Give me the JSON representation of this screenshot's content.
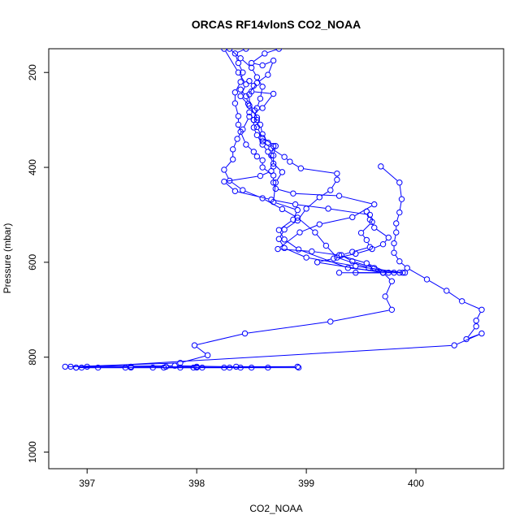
{
  "chart_data": {
    "type": "line",
    "title": "ORCAS RF14vlonS CO2_NOAA",
    "xlabel": "CO2_NOAA",
    "ylabel": "Pressure (mbar)",
    "xlim": [
      396.65,
      400.8
    ],
    "ylim": [
      1035,
      150
    ],
    "y_reversed": true,
    "x_ticks": [
      397,
      398,
      399,
      400
    ],
    "y_ticks": [
      200,
      400,
      600,
      800,
      1000
    ],
    "grid": false,
    "marker": "open-circle",
    "color": "#0000ff",
    "series": [
      {
        "values": [
          [
            398.93,
            822
          ],
          [
            398.5,
            822
          ],
          [
            398.3,
            822
          ],
          [
            397.97,
            822
          ],
          [
            397.4,
            822
          ],
          [
            396.95,
            822
          ],
          [
            396.9,
            822
          ],
          [
            397.1,
            822
          ],
          [
            397.35,
            822
          ],
          [
            397.6,
            822
          ],
          [
            397.85,
            822
          ],
          [
            398.05,
            822
          ],
          [
            398.25,
            822
          ],
          [
            398.4,
            822
          ],
          [
            398.65,
            822
          ],
          [
            397.8,
            818
          ],
          [
            396.8,
            820
          ]
        ]
      },
      {
        "values": [
          [
            396.85,
            820
          ],
          [
            397.85,
            812
          ],
          [
            398.1,
            796
          ],
          [
            397.98,
            775
          ],
          [
            398.44,
            750
          ],
          [
            399.22,
            725
          ],
          [
            399.78,
            700
          ],
          [
            399.72,
            672
          ],
          [
            399.78,
            640
          ],
          [
            399.7,
            622
          ],
          [
            399.3,
            622
          ]
        ]
      },
      {
        "values": [
          [
            396.9,
            822
          ],
          [
            400.35,
            775
          ],
          [
            400.6,
            750
          ],
          [
            400.46,
            762
          ],
          [
            400.55,
            735
          ],
          [
            400.55,
            723
          ],
          [
            400.6,
            700
          ],
          [
            400.42,
            682
          ],
          [
            400.28,
            660
          ],
          [
            400.1,
            636
          ],
          [
            399.92,
            612
          ],
          [
            399.85,
            598
          ],
          [
            399.8,
            580
          ],
          [
            399.8,
            560
          ],
          [
            399.82,
            537
          ],
          [
            399.82,
            518
          ],
          [
            399.85,
            495
          ],
          [
            399.87,
            467
          ],
          [
            399.85,
            432
          ],
          [
            399.68,
            398
          ]
        ]
      },
      {
        "values": [
          [
            397.0,
            820
          ],
          [
            397.4,
            820
          ],
          [
            397.72,
            820
          ],
          [
            398.0,
            820
          ],
          [
            398.36,
            820
          ],
          [
            398.92,
            820
          ],
          [
            398.0,
            822
          ],
          [
            397.7,
            822
          ]
        ]
      },
      {
        "values": [
          [
            399.9,
            622
          ],
          [
            399.45,
            622
          ],
          [
            399.7,
            622
          ],
          [
            399.1,
            600
          ],
          [
            399.25,
            592
          ],
          [
            399.45,
            582
          ],
          [
            399.6,
            572
          ],
          [
            399.7,
            562
          ],
          [
            399.75,
            548
          ],
          [
            399.62,
            527
          ],
          [
            399.58,
            510
          ],
          [
            399.55,
            493
          ]
        ]
      },
      {
        "values": [
          [
            399.88,
            622
          ],
          [
            399.57,
            612
          ],
          [
            399.28,
            590
          ],
          [
            399.18,
            565
          ],
          [
            399.08,
            537
          ],
          [
            398.92,
            506
          ],
          [
            398.78,
            488
          ],
          [
            398.6,
            465
          ],
          [
            398.42,
            448
          ],
          [
            398.3,
            428
          ],
          [
            398.25,
            405
          ],
          [
            398.33,
            383
          ],
          [
            398.33,
            362
          ],
          [
            398.37,
            340
          ],
          [
            398.42,
            320
          ],
          [
            398.48,
            293
          ]
        ]
      },
      {
        "values": [
          [
            399.85,
            622
          ],
          [
            399.45,
            608
          ],
          [
            399.0,
            590
          ],
          [
            398.8,
            570
          ],
          [
            398.75,
            551
          ],
          [
            398.8,
            531
          ],
          [
            398.92,
            512
          ],
          [
            399.0,
            487
          ],
          [
            399.12,
            463
          ],
          [
            399.22,
            448
          ],
          [
            399.28,
            426
          ],
          [
            399.28,
            413
          ],
          [
            398.95,
            402
          ],
          [
            398.85,
            388
          ],
          [
            398.8,
            378
          ],
          [
            398.68,
            360
          ],
          [
            398.6,
            345
          ]
        ]
      },
      {
        "values": [
          [
            399.8,
            622
          ],
          [
            399.38,
            612
          ],
          [
            398.93,
            573
          ],
          [
            398.8,
            552
          ],
          [
            398.75,
            532
          ],
          [
            398.88,
            510
          ],
          [
            398.92,
            490
          ],
          [
            398.7,
            473
          ],
          [
            398.72,
            432
          ],
          [
            398.78,
            410
          ],
          [
            398.7,
            392
          ],
          [
            398.65,
            367
          ],
          [
            398.6,
            352
          ],
          [
            398.55,
            332
          ],
          [
            398.52,
            316
          ],
          [
            398.52,
            300
          ],
          [
            398.48,
            284
          ],
          [
            398.48,
            270
          ],
          [
            398.48,
            246
          ],
          [
            398.52,
            228
          ],
          [
            398.48,
            218
          ]
        ]
      },
      {
        "values": [
          [
            399.75,
            622
          ],
          [
            399.55,
            602
          ],
          [
            399.3,
            585
          ],
          [
            399.05,
            577
          ],
          [
            398.74,
            572
          ],
          [
            398.94,
            537
          ],
          [
            399.12,
            520
          ],
          [
            399.42,
            505
          ],
          [
            399.62,
            478
          ],
          [
            399.3,
            460
          ],
          [
            398.88,
            455
          ],
          [
            398.72,
            445
          ],
          [
            398.7,
            432
          ],
          [
            398.7,
            417
          ],
          [
            398.6,
            400
          ],
          [
            398.6,
            385
          ],
          [
            398.55,
            377
          ],
          [
            398.52,
            367
          ],
          [
            398.45,
            352
          ],
          [
            398.4,
            325
          ],
          [
            398.38,
            310
          ],
          [
            398.38,
            292
          ],
          [
            398.35,
            265
          ],
          [
            398.35,
            242
          ],
          [
            398.4,
            220
          ],
          [
            398.42,
            200
          ],
          [
            398.38,
            180
          ],
          [
            398.35,
            160
          ],
          [
            398.45,
            150
          ]
        ]
      },
      {
        "values": [
          [
            399.7,
            622
          ],
          [
            399.62,
            612
          ],
          [
            399.42,
            598
          ],
          [
            399.32,
            585
          ],
          [
            399.42,
            578
          ],
          [
            399.58,
            568
          ],
          [
            399.55,
            553
          ],
          [
            399.5,
            538
          ],
          [
            399.6,
            515
          ],
          [
            399.58,
            500
          ],
          [
            399.2,
            487
          ],
          [
            398.9,
            478
          ],
          [
            398.68,
            468
          ],
          [
            398.35,
            450
          ],
          [
            398.25,
            430
          ],
          [
            398.58,
            418
          ],
          [
            398.68,
            408
          ],
          [
            398.7,
            398
          ],
          [
            398.7,
            375
          ],
          [
            398.72,
            355
          ],
          [
            398.6,
            338
          ],
          [
            398.55,
            315
          ],
          [
            398.55,
            300
          ],
          [
            398.53,
            280
          ],
          [
            398.47,
            266
          ],
          [
            398.45,
            250
          ],
          [
            398.4,
            236
          ]
        ]
      },
      {
        "values": [
          [
            398.25,
            150
          ],
          [
            398.38,
            200
          ],
          [
            398.45,
            225
          ],
          [
            398.4,
            250
          ],
          [
            398.48,
            270
          ],
          [
            398.55,
            295
          ],
          [
            398.58,
            310
          ],
          [
            398.6,
            330
          ],
          [
            398.65,
            348
          ],
          [
            398.7,
            355
          ],
          [
            398.68,
            375
          ]
        ]
      },
      {
        "values": [
          [
            398.3,
            150
          ],
          [
            398.4,
            170
          ],
          [
            398.5,
            190
          ],
          [
            398.55,
            210
          ],
          [
            398.6,
            230
          ],
          [
            398.58,
            255
          ],
          [
            398.55,
            275
          ],
          [
            398.52,
            300
          ]
        ]
      },
      {
        "values": [
          [
            398.75,
            150
          ],
          [
            398.62,
            160
          ],
          [
            398.5,
            180
          ],
          [
            398.6,
            185
          ],
          [
            398.7,
            175
          ],
          [
            398.65,
            205
          ],
          [
            398.55,
            222
          ],
          [
            398.5,
            240
          ],
          [
            398.7,
            245
          ],
          [
            398.6,
            275
          ]
        ]
      }
    ]
  }
}
